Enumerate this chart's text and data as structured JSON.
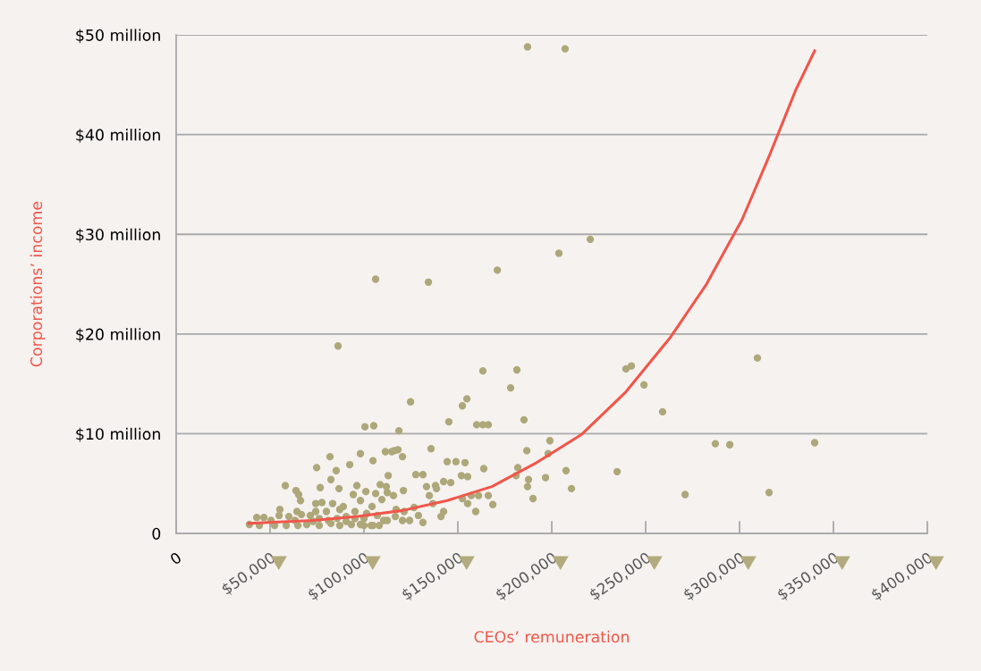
{
  "chart_data": {
    "type": "scatter",
    "xlabel": "CEOs’ remuneration",
    "ylabel": "Corporations’ income",
    "xlim": [
      0,
      400000
    ],
    "ylim": [
      0,
      50
    ],
    "xticks": [
      {
        "value": 0,
        "label": "0"
      },
      {
        "value": 50000,
        "label": "$50,000"
      },
      {
        "value": 100000,
        "label": "$100,000"
      },
      {
        "value": 150000,
        "label": "$150,000"
      },
      {
        "value": 200000,
        "label": "$200,000"
      },
      {
        "value": 250000,
        "label": "$250,000"
      },
      {
        "value": 300000,
        "label": "$300,000"
      },
      {
        "value": 350000,
        "label": "$350,000"
      },
      {
        "value": 400000,
        "label": "$400,000"
      }
    ],
    "yticks": [
      {
        "value": 0,
        "label": "0"
      },
      {
        "value": 10,
        "label": "$10 million"
      },
      {
        "value": 20,
        "label": "$20 million"
      },
      {
        "value": 30,
        "label": "$30 million"
      },
      {
        "value": 40,
        "label": "$40 million"
      },
      {
        "value": 50,
        "label": "$50 million"
      }
    ],
    "grid": "y",
    "marker": "circle",
    "series": [
      {
        "color": "#aea77a",
        "x": [
          187100,
          207100,
          220500,
          203800,
          171000,
          106200,
          134300,
          86200,
          309500,
          242400,
          239500,
          163300,
          181400,
          249100,
          178100,
          259000,
          124800,
          152400,
          154800,
          160000,
          163300,
          166200,
          185200,
          145200,
          100500,
          105200,
          118600,
          98100,
          104800,
          111400,
          114800,
          116200,
          118100,
          120500,
          135700,
          144300,
          149000,
          153800,
          163800,
          186700,
          199000,
          198100,
          181900,
          181000,
          187600,
          187100,
          196700,
          207600,
          210500,
          190000,
          234800,
          112900,
          127600,
          131400,
          121000,
          133300,
          138100,
          138600,
          142400,
          146200,
          151900,
          155200,
          152400,
          157100,
          161000,
          166200,
          168600,
          159500,
          155200,
          134800,
          136700,
          142400,
          141000,
          131400,
          129000,
          126700,
          124300,
          121400,
          116700,
          117100,
          115700,
          112400,
          111900,
          108600,
          109500,
          106200,
          101000,
          98100,
          100000,
          104300,
          107100,
          108100,
          110500,
          103800,
          98100,
          120500,
          81900,
          74800,
          92400,
          85200,
          82400,
          76700,
          86700,
          96200,
          58100,
          63800,
          65200,
          66200,
          74300,
          77600,
          83300,
          89000,
          94300,
          55200,
          64300,
          74300,
          80000,
          87100,
          42900,
          46700,
          39000,
          44300,
          50500,
          54800,
          60000,
          66700,
          71400,
          76200,
          81000,
          85700,
          90500,
          95200,
          52400,
          58600,
          64800,
          69500,
          76200,
          82400,
          87100,
          93300,
          100000,
          104800,
          112400,
          63300,
          72900,
          90500,
          95200,
          101400,
          271000,
          287100,
          294800,
          315700,
          340000
        ],
        "values": [
          48.8,
          48.6,
          29.5,
          28.1,
          26.4,
          25.5,
          25.2,
          18.8,
          17.6,
          16.8,
          16.5,
          16.3,
          16.4,
          14.9,
          14.6,
          12.2,
          13.2,
          12.8,
          13.5,
          10.9,
          10.9,
          10.9,
          11.4,
          11.2,
          10.7,
          10.8,
          10.3,
          8.0,
          7.3,
          8.2,
          8.2,
          8.3,
          8.4,
          7.7,
          8.5,
          7.2,
          7.2,
          7.1,
          6.5,
          8.3,
          9.3,
          8.0,
          6.6,
          5.8,
          5.4,
          4.7,
          5.6,
          6.3,
          4.5,
          3.5,
          6.2,
          5.8,
          5.9,
          5.9,
          4.3,
          4.7,
          4.8,
          4.5,
          5.2,
          5.1,
          5.8,
          5.7,
          3.5,
          3.8,
          3.8,
          3.8,
          2.9,
          2.2,
          3.0,
          3.8,
          3.0,
          2.2,
          1.7,
          1.1,
          1.8,
          2.6,
          1.3,
          2.2,
          1.7,
          2.4,
          3.8,
          4.1,
          4.7,
          4.9,
          3.4,
          4.0,
          4.2,
          3.3,
          1.5,
          2.7,
          1.8,
          0.8,
          1.3,
          0.8,
          0.9,
          1.3,
          7.7,
          6.6,
          6.9,
          6.3,
          5.4,
          4.6,
          4.5,
          4.8,
          4.8,
          4.3,
          3.9,
          3.3,
          3.0,
          3.1,
          3.0,
          2.7,
          3.9,
          2.4,
          2.2,
          2.2,
          2.2,
          2.4,
          1.6,
          1.6,
          0.9,
          0.8,
          1.3,
          1.8,
          1.7,
          1.9,
          1.8,
          1.5,
          1.3,
          1.5,
          1.7,
          1.5,
          0.8,
          0.8,
          0.8,
          0.9,
          0.8,
          1.0,
          0.8,
          0.9,
          0.8,
          0.8,
          1.3,
          1.3,
          1.2,
          1.2,
          2.2,
          2.0,
          3.9,
          9.0,
          8.9,
          4.1,
          9.1
        ]
      },
      {
        "type": "line",
        "color": "#f0564b",
        "marker": "none",
        "line_style": "solid",
        "x": [
          38600,
          49000,
          72900,
          96700,
          120500,
          144300,
          168100,
          191900,
          215700,
          239500,
          263300,
          282400,
          301400,
          315700,
          330000,
          340000
        ],
        "values": [
          1.0,
          1.1,
          1.3,
          1.7,
          2.3,
          3.3,
          4.7,
          7.1,
          9.9,
          14.2,
          19.7,
          25.0,
          31.5,
          37.8,
          44.5,
          48.4
        ]
      }
    ]
  }
}
